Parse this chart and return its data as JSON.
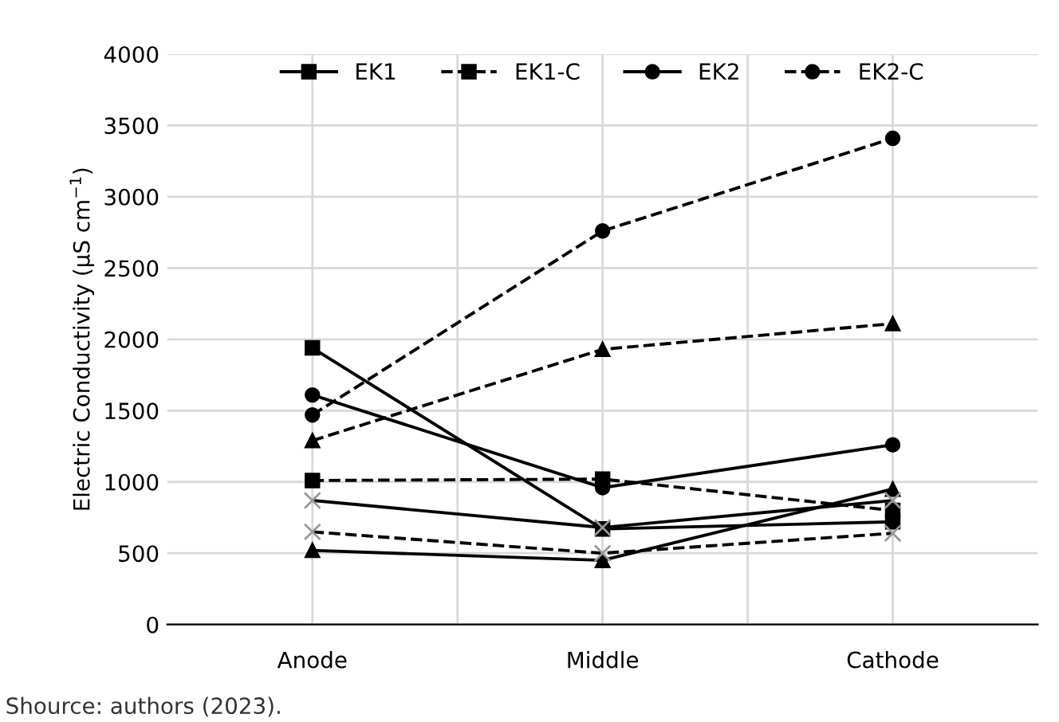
{
  "chart_data": {
    "type": "line",
    "ylabel": "Electric Conductivity (µS cm$^{−1}$)",
    "categories": [
      "Anode",
      "Middle",
      "Cathode"
    ],
    "ylim": [
      0,
      4000
    ],
    "yticks": [
      0,
      500,
      1000,
      1500,
      2000,
      2500,
      3000,
      3500,
      4000
    ],
    "grid": true,
    "legend": "top",
    "annotations": [
      "Shource: authors (2023)."
    ],
    "series": [
      {
        "name": "EK1",
        "color": "#000000",
        "marker": "square",
        "line_style": "solid",
        "values": [
          1940,
          670,
          720
        ]
      },
      {
        "name": "EK1-C",
        "color": "#000000",
        "marker": "square",
        "line_style": "dashed",
        "values": [
          1010,
          1020,
          800
        ]
      },
      {
        "name": "EK2",
        "color": "#000000",
        "marker": "circle",
        "line_style": "solid",
        "values": [
          1610,
          960,
          1260
        ]
      },
      {
        "name": "EK2-C",
        "color": "#000000",
        "marker": "circle",
        "line_style": "dashed",
        "values": [
          1470,
          2760,
          3410
        ]
      },
      {
        "color": "#000000",
        "marker": "triangle",
        "line_style": "dashed",
        "values": [
          1290,
          1930,
          2110
        ]
      },
      {
        "color": "#000000",
        "marker": "triangle",
        "line_style": "solid",
        "values": [
          520,
          450,
          950
        ]
      },
      {
        "color": "#000000",
        "marker": "cross",
        "line_style": "solid",
        "values": [
          870,
          680,
          870
        ]
      },
      {
        "color": "#000000",
        "marker": "cross",
        "line_style": "dashed",
        "values": [
          650,
          500,
          640
        ]
      }
    ]
  }
}
